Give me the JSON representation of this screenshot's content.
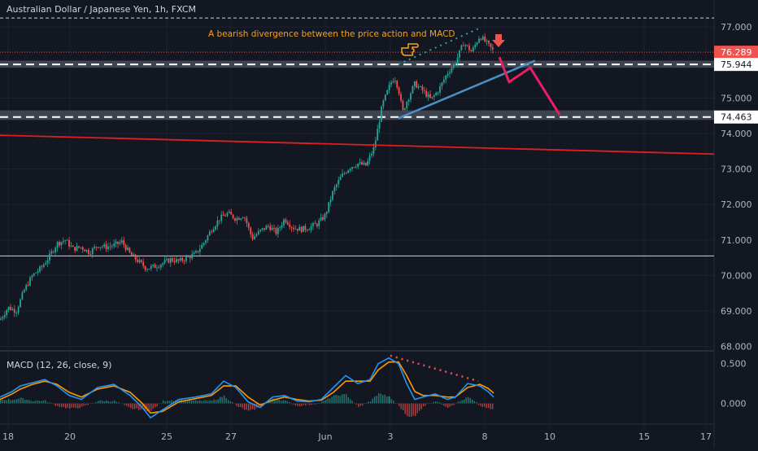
{
  "header": {
    "symbol_title": "Australian Dollar / Japanese Yen, 1h, FXCM"
  },
  "annotation": {
    "text": "A bearish divergence between the price action and MACD"
  },
  "macd_panel": {
    "label": "MACD (12, 26, close, 9)"
  },
  "colors": {
    "background": "#131722",
    "grid": "#1e222d",
    "axis_text": "#b2b5be",
    "up_candle": "#26a69a",
    "down_candle": "#ef5350",
    "annotation": "#f7a21b",
    "trendline_blue": "#4a90c8",
    "trendline_red": "#e0201f",
    "projection": "#e91e63",
    "zone": "#4a4f5c",
    "macd_line": "#2196f3",
    "signal_line": "#ff9800"
  },
  "chart_data": [
    {
      "type": "candlestick",
      "title": "Australian Dollar / Japanese Yen, 1h, FXCM",
      "y_ticks": [
        "77.000",
        "76.000",
        "75.000",
        "74.000",
        "73.000",
        "72.000",
        "71.000",
        "70.000",
        "69.000",
        "68.000"
      ],
      "ylim": [
        67.9,
        77.3
      ],
      "x_ticks": [
        "18",
        "20",
        "25",
        "27",
        "Jun",
        "3",
        "8",
        "10",
        "15",
        "17"
      ],
      "price_labels": [
        {
          "value": 76.289,
          "text": "76.289",
          "color": "#ef5350"
        },
        {
          "value": 75.944,
          "text": "75.944",
          "color": "#131722"
        },
        {
          "value": 74.463,
          "text": "74.463",
          "color": "#131722"
        }
      ],
      "horizontal_levels": [
        77.25,
        70.55
      ],
      "zones": [
        {
          "from": 75.85,
          "to": 76.05
        },
        {
          "from": 74.38,
          "to": 74.65
        }
      ],
      "dashed_levels": [
        75.944,
        74.463
      ],
      "path_points": [
        [
          0,
          68.75
        ],
        [
          10,
          69.1
        ],
        [
          20,
          69.0
        ],
        [
          30,
          69.6
        ],
        [
          40,
          70.0
        ],
        [
          50,
          70.2
        ],
        [
          60,
          70.5
        ],
        [
          70,
          70.9
        ],
        [
          80,
          71.0
        ],
        [
          90,
          70.75
        ],
        [
          100,
          70.8
        ],
        [
          110,
          70.65
        ],
        [
          120,
          70.85
        ],
        [
          130,
          70.8
        ],
        [
          140,
          70.85
        ],
        [
          150,
          70.95
        ],
        [
          160,
          70.6
        ],
        [
          170,
          70.4
        ],
        [
          180,
          70.2
        ],
        [
          190,
          70.25
        ],
        [
          200,
          70.35
        ],
        [
          210,
          70.45
        ],
        [
          220,
          70.4
        ],
        [
          230,
          70.5
        ],
        [
          240,
          70.6
        ],
        [
          250,
          70.9
        ],
        [
          260,
          71.3
        ],
        [
          270,
          71.6
        ],
        [
          280,
          71.75
        ],
        [
          290,
          71.6
        ],
        [
          300,
          71.7
        ],
        [
          310,
          71.05
        ],
        [
          320,
          71.25
        ],
        [
          330,
          71.4
        ],
        [
          340,
          71.2
        ],
        [
          350,
          71.6
        ],
        [
          360,
          71.35
        ],
        [
          370,
          71.3
        ],
        [
          380,
          71.35
        ],
        [
          390,
          71.45
        ],
        [
          400,
          71.7
        ],
        [
          410,
          72.4
        ],
        [
          420,
          72.8
        ],
        [
          430,
          73.05
        ],
        [
          440,
          73.15
        ],
        [
          450,
          73.1
        ],
        [
          460,
          73.6
        ],
        [
          470,
          74.8
        ],
        [
          480,
          75.4
        ],
        [
          485,
          75.6
        ],
        [
          490,
          75.25
        ],
        [
          495,
          74.6
        ],
        [
          500,
          74.9
        ],
        [
          510,
          75.4
        ],
        [
          520,
          75.2
        ],
        [
          530,
          74.95
        ],
        [
          540,
          75.25
        ],
        [
          550,
          75.7
        ],
        [
          560,
          76.0
        ],
        [
          570,
          76.55
        ],
        [
          580,
          76.3
        ],
        [
          590,
          76.75
        ],
        [
          600,
          76.5
        ],
        [
          607,
          76.3
        ]
      ],
      "divergence_line_price": [
        [
          490,
          75.95
        ],
        [
          588,
          76.95
        ]
      ],
      "trendline_blue": [
        [
          490,
          74.43
        ],
        [
          658,
          76.05
        ]
      ],
      "trendline_red": [
        [
          0,
          73.95
        ],
        [
          878,
          73.42
        ]
      ],
      "projection_path": [
        [
          614,
          76.15
        ],
        [
          626,
          75.45
        ],
        [
          652,
          75.85
        ],
        [
          688,
          74.53
        ]
      ]
    },
    {
      "type": "line",
      "title": "MACD (12, 26, close, 9)",
      "y_ticks": [
        "0.500",
        "0.000"
      ],
      "ylim": [
        -0.25,
        0.65
      ],
      "series": [
        {
          "name": "MACD",
          "points": [
            [
              0,
              0.08
            ],
            [
              15,
              0.15
            ],
            [
              25,
              0.22
            ],
            [
              40,
              0.26
            ],
            [
              55,
              0.3
            ],
            [
              70,
              0.22
            ],
            [
              85,
              0.1
            ],
            [
              100,
              0.05
            ],
            [
              120,
              0.2
            ],
            [
              140,
              0.24
            ],
            [
              160,
              0.1
            ],
            [
              175,
              -0.05
            ],
            [
              185,
              -0.18
            ],
            [
              200,
              -0.08
            ],
            [
              220,
              0.05
            ],
            [
              240,
              0.08
            ],
            [
              260,
              0.12
            ],
            [
              275,
              0.28
            ],
            [
              290,
              0.2
            ],
            [
              305,
              0.02
            ],
            [
              320,
              -0.05
            ],
            [
              335,
              0.08
            ],
            [
              350,
              0.1
            ],
            [
              365,
              0.03
            ],
            [
              380,
              0.02
            ],
            [
              395,
              0.05
            ],
            [
              410,
              0.2
            ],
            [
              425,
              0.35
            ],
            [
              440,
              0.25
            ],
            [
              455,
              0.3
            ],
            [
              465,
              0.5
            ],
            [
              478,
              0.57
            ],
            [
              490,
              0.5
            ],
            [
              500,
              0.25
            ],
            [
              510,
              0.05
            ],
            [
              520,
              0.08
            ],
            [
              535,
              0.12
            ],
            [
              550,
              0.05
            ],
            [
              560,
              0.08
            ],
            [
              575,
              0.25
            ],
            [
              590,
              0.22
            ],
            [
              600,
              0.15
            ],
            [
              607,
              0.08
            ]
          ]
        },
        {
          "name": "Signal",
          "points": [
            [
              0,
              0.05
            ],
            [
              15,
              0.12
            ],
            [
              25,
              0.18
            ],
            [
              40,
              0.24
            ],
            [
              55,
              0.28
            ],
            [
              70,
              0.24
            ],
            [
              85,
              0.14
            ],
            [
              100,
              0.08
            ],
            [
              120,
              0.18
            ],
            [
              140,
              0.22
            ],
            [
              160,
              0.14
            ],
            [
              175,
              0.0
            ],
            [
              185,
              -0.12
            ],
            [
              200,
              -0.1
            ],
            [
              220,
              0.02
            ],
            [
              240,
              0.06
            ],
            [
              260,
              0.1
            ],
            [
              275,
              0.22
            ],
            [
              290,
              0.22
            ],
            [
              305,
              0.08
            ],
            [
              320,
              -0.02
            ],
            [
              335,
              0.04
            ],
            [
              350,
              0.08
            ],
            [
              365,
              0.05
            ],
            [
              380,
              0.03
            ],
            [
              395,
              0.04
            ],
            [
              410,
              0.14
            ],
            [
              425,
              0.28
            ],
            [
              440,
              0.28
            ],
            [
              455,
              0.28
            ],
            [
              465,
              0.42
            ],
            [
              478,
              0.52
            ],
            [
              490,
              0.52
            ],
            [
              500,
              0.35
            ],
            [
              510,
              0.15
            ],
            [
              520,
              0.1
            ],
            [
              535,
              0.1
            ],
            [
              550,
              0.08
            ],
            [
              560,
              0.08
            ],
            [
              575,
              0.2
            ],
            [
              590,
              0.24
            ],
            [
              600,
              0.19
            ],
            [
              607,
              0.13
            ]
          ]
        }
      ],
      "divergence_line": [
        [
          480,
          0.6
        ],
        [
          588,
          0.28
        ]
      ]
    }
  ]
}
